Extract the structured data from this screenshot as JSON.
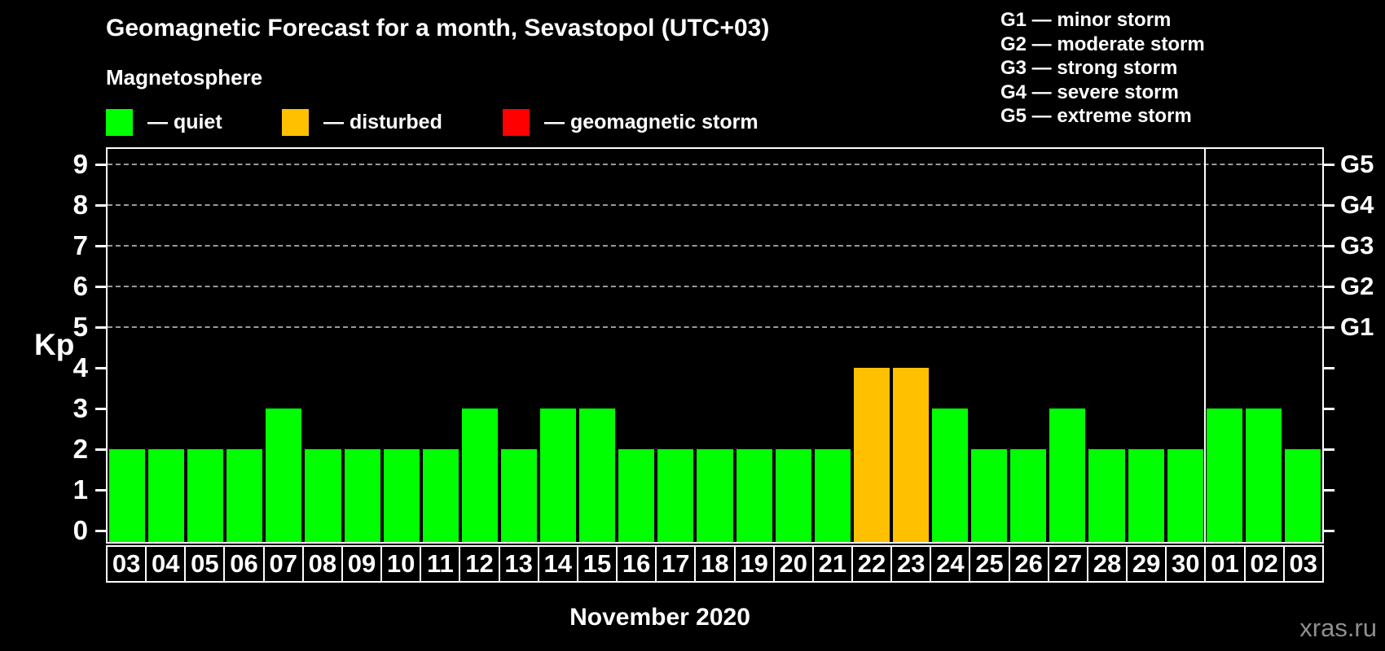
{
  "header": {
    "title": "Geomagnetic Forecast for a month, Sevastopol (UTC+03)",
    "subtitle": "Magnetosphere"
  },
  "legend": {
    "items": [
      {
        "name": "quiet",
        "label": "— quiet",
        "color": "#00ff00"
      },
      {
        "name": "disturbed",
        "label": "— disturbed",
        "color": "#ffc000"
      },
      {
        "name": "storm",
        "label": "— geomagnetic storm",
        "color": "#ff0000"
      }
    ]
  },
  "g_scale_legend": {
    "lines": [
      "G1 — minor storm",
      "G2 — moderate storm",
      "G3 — strong storm",
      "G4 — severe storm",
      "G5 — extreme storm"
    ]
  },
  "axis": {
    "y_label": "Kp",
    "y_ticks": [
      "0",
      "1",
      "2",
      "3",
      "4",
      "5",
      "6",
      "7",
      "8",
      "9"
    ],
    "right_labels": [
      {
        "kp": 5,
        "label": "G1"
      },
      {
        "kp": 6,
        "label": "G2"
      },
      {
        "kp": 7,
        "label": "G3"
      },
      {
        "kp": 8,
        "label": "G4"
      },
      {
        "kp": 9,
        "label": "G5"
      }
    ],
    "x_title": "November 2020"
  },
  "watermark": "xras.ru",
  "chart_data": {
    "type": "bar",
    "title": "Geomagnetic Forecast for a month, Sevastopol (UTC+03)",
    "xlabel": "November 2020",
    "ylabel": "Kp",
    "ylim": [
      0,
      9.4
    ],
    "grid": "dashed horizontal lines at Kp 5,6,7,8,9 (G1–G5)",
    "legend_position": "top-left",
    "x": [
      "03",
      "04",
      "05",
      "06",
      "07",
      "08",
      "09",
      "10",
      "11",
      "12",
      "13",
      "14",
      "15",
      "16",
      "17",
      "18",
      "19",
      "20",
      "21",
      "22",
      "23",
      "24",
      "25",
      "26",
      "27",
      "28",
      "29",
      "30",
      "01",
      "02",
      "03"
    ],
    "values": [
      2,
      2,
      2,
      2,
      3,
      2,
      2,
      2,
      2,
      3,
      2,
      3,
      3,
      2,
      2,
      2,
      2,
      2,
      2,
      4,
      4,
      3,
      2,
      2,
      3,
      2,
      2,
      2,
      3,
      3,
      2
    ],
    "statuses": [
      "quiet",
      "quiet",
      "quiet",
      "quiet",
      "quiet",
      "quiet",
      "quiet",
      "quiet",
      "quiet",
      "quiet",
      "quiet",
      "quiet",
      "quiet",
      "quiet",
      "quiet",
      "quiet",
      "quiet",
      "quiet",
      "quiet",
      "disturbed",
      "disturbed",
      "quiet",
      "quiet",
      "quiet",
      "quiet",
      "quiet",
      "quiet",
      "quiet",
      "quiet",
      "quiet",
      "quiet"
    ],
    "status_colors": {
      "quiet": "#00ff00",
      "disturbed": "#ffc000",
      "storm": "#ff0000"
    },
    "gridline_kp_levels": [
      5,
      6,
      7,
      8,
      9
    ],
    "month_separator_after_index": 27
  }
}
